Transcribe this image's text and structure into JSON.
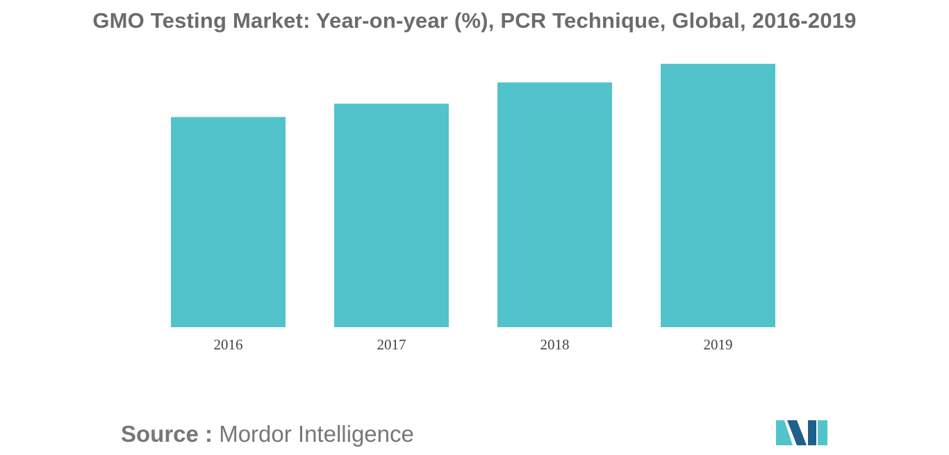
{
  "title": "GMO Testing Market: Year-on-year (%), PCR Technique, Global, 2016-2019",
  "source": {
    "label": "Source :",
    "name": "Mordor Intelligence"
  },
  "colors": {
    "bar": "#52c3ca",
    "title": "#6b6b6b",
    "tick": "#444444",
    "logo_dark": "#1f5f8b",
    "logo_light": "#52c3ca"
  },
  "chart_data": {
    "type": "bar",
    "title": "GMO Testing Market: Year-on-year (%), PCR Technique, Global, 2016-2019",
    "categories": [
      "2016",
      "2017",
      "2018",
      "2019"
    ],
    "values": [
      7.9,
      8.4,
      9.2,
      9.9
    ],
    "ylim": [
      0,
      10
    ],
    "xlabel": "",
    "ylabel": "",
    "grid": false,
    "legend": "none"
  }
}
